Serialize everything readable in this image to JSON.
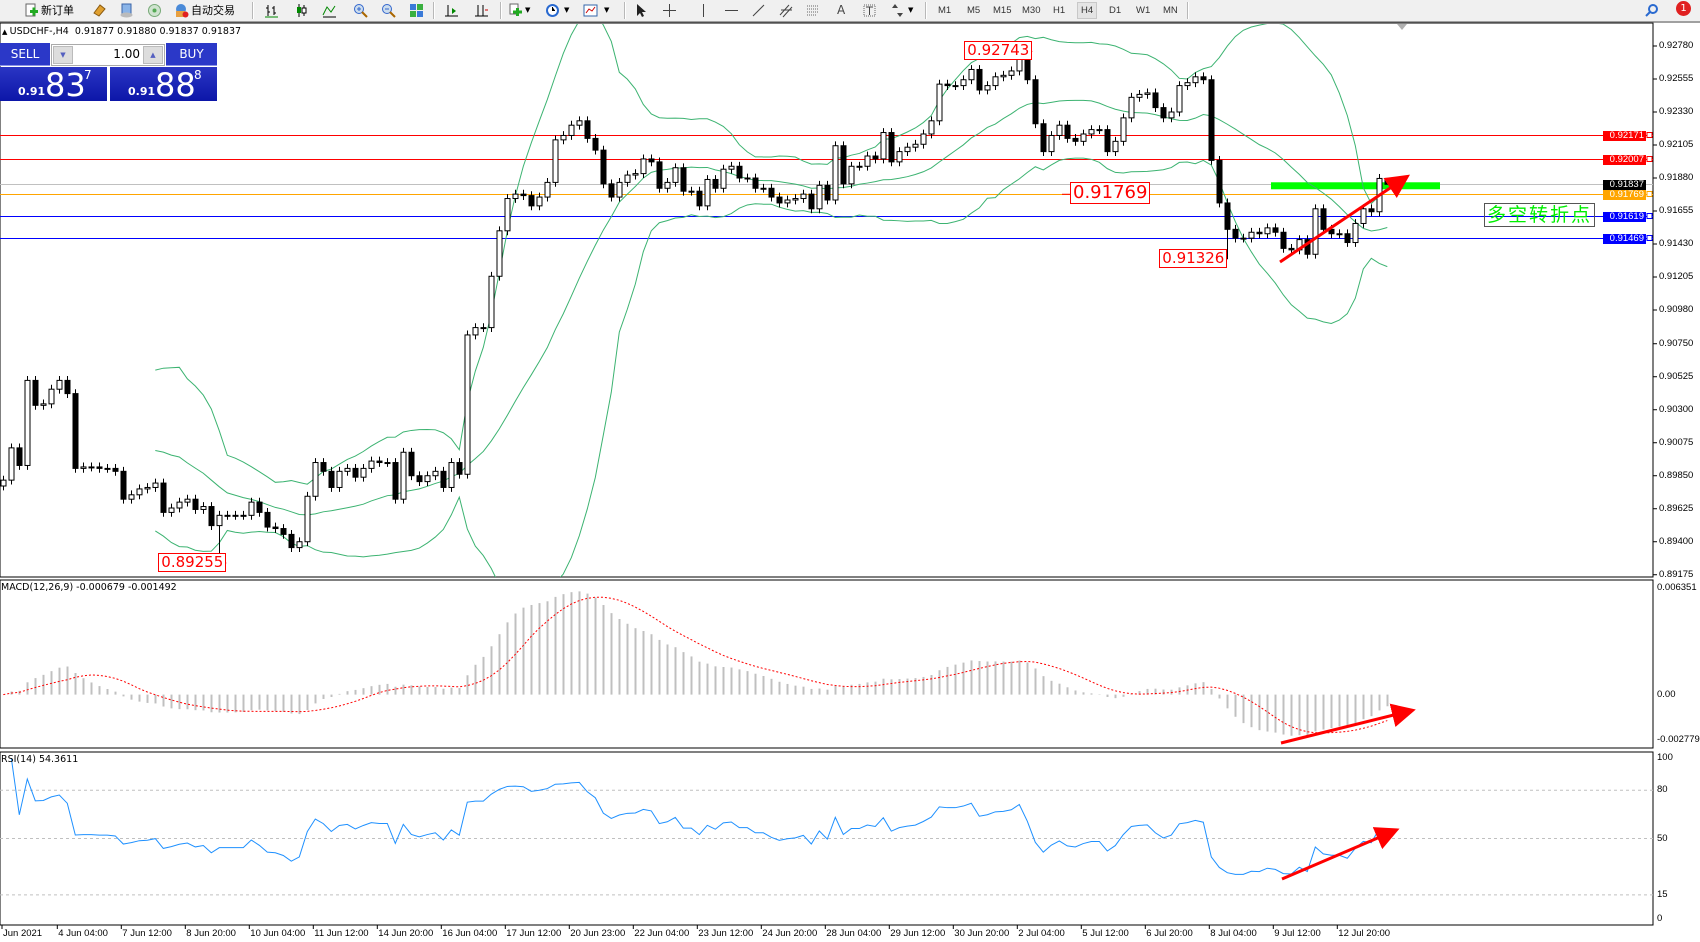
{
  "toolbar": {
    "new_order": "新订单",
    "auto_trading": "自动交易",
    "timeframes": [
      "M1",
      "M5",
      "M15",
      "M30",
      "H1",
      "H4",
      "D1",
      "W1",
      "MN"
    ],
    "active_timeframe": "H4",
    "notification_count": "1"
  },
  "chart_header": {
    "symbol": "USDCHF-,H4",
    "ohlc": "0.91877 0.91880 0.91837 0.91837"
  },
  "trade_panel": {
    "sell_label": "SELL",
    "buy_label": "BUY",
    "lot": "1.00",
    "sell_price": {
      "prefix": "0.91",
      "big": "83",
      "sup": "7"
    },
    "buy_price": {
      "prefix": "0.91",
      "big": "88",
      "sup": "8"
    }
  },
  "indicators": {
    "macd_label": "MACD(12,26,9) -0.000679 -0.001492",
    "rsi_label": "RSI(14) 54.3611"
  },
  "annotation_text": "多空转折点",
  "colors": {
    "bull_candle": "#ffffff",
    "bear_candle": "#000000",
    "bollinger": "#3cb371",
    "resistance": "#ff0000",
    "support": "#0000ff",
    "pivot": "#ffa500",
    "bid_line": "#c0c0c0",
    "highlight_bar": "#00ff00",
    "arrow": "#ff0000",
    "macd_hist": "#c0c0c0",
    "macd_signal": "#ff0000",
    "rsi": "#1e90ff"
  },
  "chart_data": {
    "type": "candlestick",
    "symbol": "USDCHF-",
    "timeframe": "H4",
    "price_axis": {
      "range": [
        0.89175,
        0.9278
      ],
      "ticks": [
        "0.92780",
        "0.92555",
        "0.92330",
        "0.92105",
        "0.91880",
        "0.91655",
        "0.91430",
        "0.91205",
        "0.90980",
        "0.90750",
        "0.90525",
        "0.90300",
        "0.90075",
        "0.89850",
        "0.89625",
        "0.89400",
        "0.89175"
      ]
    },
    "time_labels": [
      "Jun 2021",
      "4 Jun 04:00",
      "7 Jun 12:00",
      "8 Jun 20:00",
      "10 Jun 04:00",
      "11 Jun 12:00",
      "14 Jun 20:00",
      "16 Jun 04:00",
      "17 Jun 12:00",
      "20 Jun 23:00",
      "22 Jun 04:00",
      "23 Jun 12:00",
      "24 Jun 20:00",
      "28 Jun 04:00",
      "29 Jun 12:00",
      "30 Jun 20:00",
      "2 Jul 04:00",
      "5 Jul 12:00",
      "6 Jul 20:00",
      "8 Jul 04:00",
      "9 Jul 12:00",
      "12 Jul 20:00"
    ],
    "first_open": 0.8978,
    "close": [
      0.8982,
      0.9004,
      0.8992,
      0.905,
      0.9033,
      0.9034,
      0.9044,
      0.905,
      0.9041,
      0.899,
      0.8991,
      0.8991,
      0.899,
      0.899,
      0.8988,
      0.8969,
      0.8972,
      0.8976,
      0.8977,
      0.898,
      0.896,
      0.8963,
      0.8967,
      0.8969,
      0.8962,
      0.8964,
      0.8951,
      0.8958,
      0.8958,
      0.8958,
      0.8958,
      0.8967,
      0.896,
      0.895,
      0.8949,
      0.8945,
      0.8936,
      0.894,
      0.8971,
      0.8994,
      0.8988,
      0.8977,
      0.8988,
      0.899,
      0.8984,
      0.899,
      0.8995,
      0.8994,
      0.8994,
      0.8969,
      0.9001,
      0.8985,
      0.8981,
      0.8985,
      0.8988,
      0.8977,
      0.8994,
      0.8986,
      0.9081,
      0.9086,
      0.9086,
      0.9121,
      0.9152,
      0.9174,
      0.9177,
      0.9176,
      0.9169,
      0.9175,
      0.9185,
      0.9214,
      0.9217,
      0.9224,
      0.9227,
      0.9215,
      0.9207,
      0.9184,
      0.9175,
      0.9185,
      0.919,
      0.9191,
      0.9201,
      0.9199,
      0.9181,
      0.9185,
      0.9195,
      0.9179,
      0.9179,
      0.9169,
      0.9187,
      0.9181,
      0.9194,
      0.9196,
      0.9188,
      0.9188,
      0.9181,
      0.9181,
      0.9175,
      0.9171,
      0.9173,
      0.9174,
      0.9177,
      0.9167,
      0.9183,
      0.9173,
      0.921,
      0.9184,
      0.9196,
      0.9196,
      0.9203,
      0.9201,
      0.9219,
      0.9199,
      0.9206,
      0.9209,
      0.9211,
      0.9218,
      0.9227,
      0.9252,
      0.9251,
      0.9251,
      0.9255,
      0.9262,
      0.9248,
      0.9251,
      0.9257,
      0.9258,
      0.9261,
      0.9272,
      0.9255,
      0.9225,
      0.9206,
      0.9217,
      0.9224,
      0.9215,
      0.9213,
      0.9218,
      0.9221,
      0.9221,
      0.9206,
      0.9213,
      0.9229,
      0.9243,
      0.9245,
      0.9246,
      0.9236,
      0.9229,
      0.9233,
      0.9251,
      0.9253,
      0.9257,
      0.9255,
      0.92,
      0.9171,
      0.9153,
      0.9147,
      0.9147,
      0.9151,
      0.915,
      0.9154,
      0.9151,
      0.914,
      0.9139,
      0.9146,
      0.9136,
      0.9167,
      0.9153,
      0.915,
      0.915,
      0.9144,
      0.9157,
      0.9167,
      0.9165,
      0.91877,
      0.91837
    ],
    "extremes": [
      {
        "bar": 27,
        "low": 0.89255
      },
      {
        "bar": 127,
        "high": 0.92743
      },
      {
        "bar": 153,
        "low": 0.91326
      },
      {
        "bar": 173,
        "high": 0.9188,
        "low": 0.91837
      }
    ],
    "price_labels": [
      {
        "text": "0.92743",
        "price": 0.92743
      },
      {
        "text": "0.91769",
        "price": 0.91769
      },
      {
        "text": "0.91326",
        "price": 0.91326
      },
      {
        "text": "0.89255",
        "price": 0.89255
      }
    ],
    "horizontal_lines": [
      {
        "price": 0.92171,
        "label": "0.92171",
        "color": "#ff0000"
      },
      {
        "price": 0.92007,
        "label": "0.92007",
        "color": "#ff0000"
      },
      {
        "price": 0.91837,
        "label": "0.91837",
        "color": "#000000",
        "line_color": "#c0c0c0"
      },
      {
        "price": 0.91769,
        "label": "0.91769",
        "color": "#ffa500"
      },
      {
        "price": 0.91619,
        "label": "0.91619",
        "color": "#0000ff"
      },
      {
        "price": 0.91469,
        "label": "0.91469",
        "color": "#0000ff"
      }
    ],
    "bollinger": {
      "period": 20,
      "deviation": 2
    },
    "macd": {
      "params": [
        12,
        26,
        9
      ],
      "axis_labels": [
        "0.006351",
        "0.00",
        "-0.002779"
      ],
      "range": [
        -0.002779,
        0.006351
      ]
    },
    "rsi": {
      "period": 14,
      "levels": [
        80,
        50,
        15
      ],
      "axis_labels": [
        "100",
        "80",
        "50",
        "15",
        "0"
      ]
    }
  }
}
